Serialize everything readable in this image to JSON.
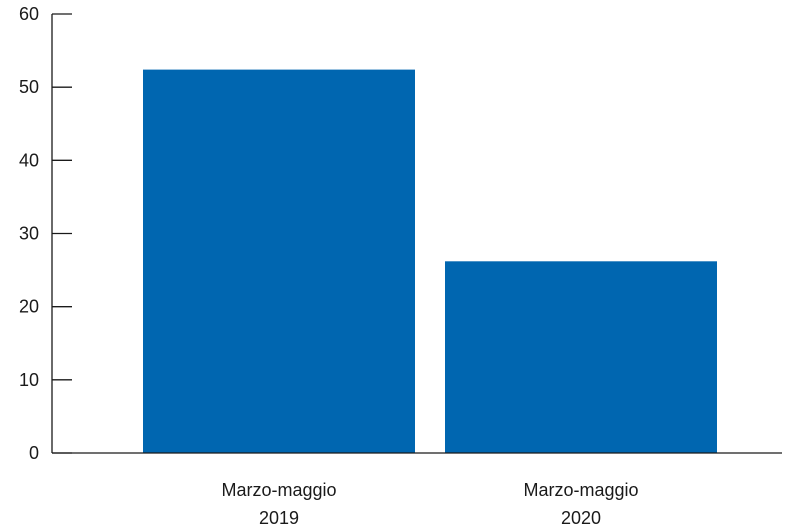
{
  "chart_data": {
    "type": "bar",
    "categories": [
      [
        "Marzo-maggio",
        "2019"
      ],
      [
        "Marzo-maggio",
        "2020"
      ]
    ],
    "values": [
      52.4,
      26.2
    ],
    "ylim": [
      0,
      60
    ],
    "yticks": [
      "0",
      "10",
      "20",
      "30",
      "40",
      "50",
      "60"
    ],
    "grid": false,
    "bar_color": "#0066b0",
    "title": "",
    "xlabel": "",
    "ylabel": ""
  }
}
